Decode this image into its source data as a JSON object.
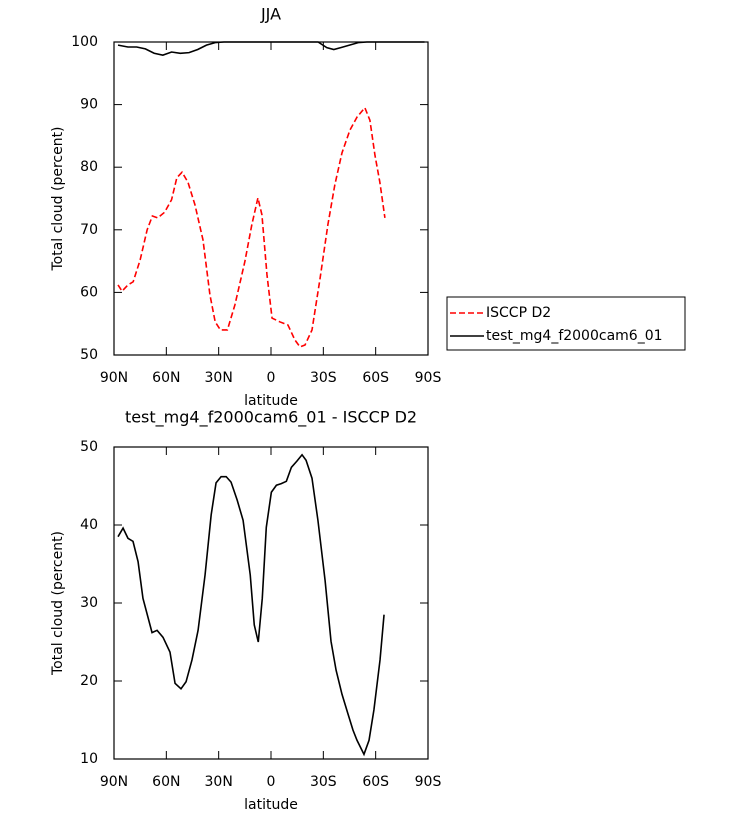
{
  "chart_data": [
    {
      "type": "line",
      "title": "JJA",
      "ylabel": "Total cloud (percent)",
      "xlabel": "latitude",
      "xlim": [
        90,
        -90
      ],
      "xticks": [
        {
          "value": 90,
          "label": "90N"
        },
        {
          "value": 60,
          "label": "60N"
        },
        {
          "value": 30,
          "label": "30N"
        },
        0,
        {
          "value": -30,
          "label": "30S"
        },
        {
          "value": -60,
          "label": "60S"
        },
        {
          "value": -90,
          "label": "90S"
        }
      ],
      "ylim": [
        50,
        100
      ],
      "yticks": [
        50,
        60,
        70,
        80,
        90,
        100
      ],
      "legend": "right",
      "series": [
        {
          "name": "ISCCP D2",
          "color": "#ff0000",
          "line_style": "dashed",
          "x": [
            87.7,
            85.4,
            82,
            79,
            75,
            71,
            68,
            65,
            61,
            57,
            54,
            51,
            47.6,
            43.6,
            39,
            35,
            32,
            29,
            25,
            20.7,
            15,
            11,
            7.5,
            5.2,
            2.3,
            -0.6,
            -5,
            -9.7,
            -13.7,
            -16.6,
            -19.5,
            -23.5,
            -28,
            -32.6,
            -36.6,
            -40.7,
            -45.2,
            -49.3,
            -53.8,
            -56.7,
            -59.6,
            -62.4,
            -65.3
          ],
          "values": [
            61.2,
            60.2,
            61.2,
            61.7,
            65.2,
            70,
            72.2,
            71.9,
            72.8,
            74.8,
            78.3,
            79.2,
            77.6,
            74,
            68.4,
            59.6,
            55.3,
            54,
            54,
            58,
            64.9,
            70.8,
            75.1,
            72.4,
            62.8,
            55.9,
            55.3,
            54.8,
            52.4,
            51.3,
            51.6,
            54,
            62,
            70.8,
            77.2,
            82.3,
            85.9,
            88,
            89.5,
            87.5,
            81.9,
            77.6,
            71.9
          ]
        },
        {
          "name": "test_mg4_f2000cam6_01",
          "color": "#000000",
          "line_style": "solid",
          "x": [
            87.7,
            82,
            77,
            72,
            67,
            62,
            57,
            52,
            47,
            42,
            37,
            32,
            27,
            0,
            -27,
            -32,
            -36,
            -40,
            -45,
            -50,
            -55,
            -60,
            -88
          ],
          "values": [
            99.5,
            99.2,
            99.2,
            98.9,
            98.2,
            97.9,
            98.4,
            98.2,
            98.3,
            98.8,
            99.5,
            99.9,
            100,
            100,
            100,
            99.1,
            98.8,
            99.1,
            99.5,
            99.9,
            100,
            100,
            100
          ]
        }
      ]
    },
    {
      "type": "line",
      "title": "test_mg4_f2000cam6_01 - ISCCP D2",
      "ylabel": "Total cloud (percent)",
      "xlabel": "latitude",
      "xlim": [
        90,
        -90
      ],
      "xticks": [
        {
          "value": 90,
          "label": "90N"
        },
        {
          "value": 60,
          "label": "60N"
        },
        {
          "value": 30,
          "label": "30N"
        },
        0,
        {
          "value": -30,
          "label": "30S"
        },
        {
          "value": -60,
          "label": "60S"
        },
        {
          "value": -90,
          "label": "90S"
        }
      ],
      "ylim": [
        10,
        50
      ],
      "yticks": [
        10,
        20,
        30,
        40,
        50
      ],
      "series": [
        {
          "color": "#000000",
          "line_style": "solid",
          "x": [
            87.7,
            84.8,
            82,
            79.1,
            76.2,
            73.4,
            68.2,
            65.3,
            61.9,
            57.9,
            55,
            51.6,
            48.7,
            45.3,
            41.8,
            37.8,
            34.3,
            31.5,
            28.6,
            25.7,
            22.9,
            19.4,
            16,
            11.9,
            9.6,
            7.3,
            5,
            2.7,
            -0.2,
            -3.1,
            -5.9,
            -8.8,
            -11.7,
            -14.9,
            -17.8,
            -20.1,
            -23.5,
            -26.9,
            -31,
            -34.4,
            -37.3,
            -40.7,
            -44.1,
            -47,
            -49.3,
            -53.3,
            -56.2,
            -59,
            -62.5,
            -64.8
          ],
          "values": [
            38.5,
            39.6,
            38.3,
            37.9,
            35.3,
            30.6,
            26.2,
            26.5,
            25.6,
            23.7,
            19.7,
            19,
            19.9,
            22.7,
            26.5,
            33.6,
            41.3,
            45.4,
            46.2,
            46.2,
            45.5,
            43.2,
            40.6,
            33.6,
            27.2,
            25,
            30.6,
            39.7,
            44.2,
            45.1,
            45.3,
            45.6,
            47.4,
            48.2,
            49,
            48.3,
            46,
            40.6,
            32.9,
            25.1,
            21.4,
            18.3,
            15.8,
            13.7,
            12.4,
            10.6,
            12.4,
            16.3,
            22.7,
            28.5
          ]
        }
      ]
    }
  ]
}
